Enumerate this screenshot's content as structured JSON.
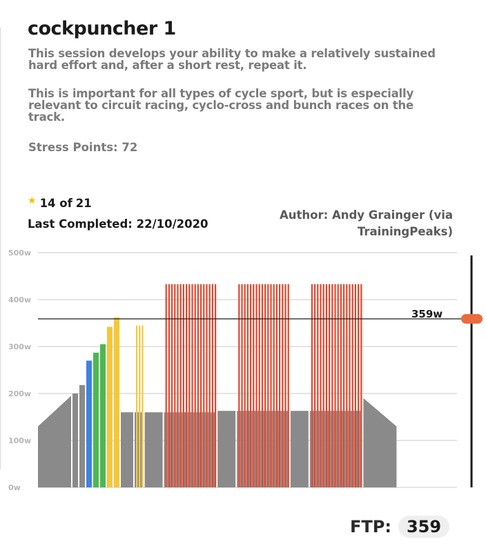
{
  "workout": {
    "title": "cockpuncher 1",
    "description_1": "This session develops your ability to make a relatively sustained hard effort and, after a short rest, repeat it.",
    "description_2": "This is important for all types of cycle sport, but is especially relevant to circuit racing, cyclo-cross and bunch races on the track.",
    "stress_points": "Stress Points: 72",
    "rating_current": "14 of",
    "rating_total": "21",
    "last_completed": "Last Completed: 22/10/2020",
    "author": "Author: Andy Grainger (via TrainingPeaks)"
  },
  "icons": {
    "star": "star-icon",
    "slider": "slider-handle"
  },
  "ftp": {
    "label": "FTP:",
    "value": "359"
  },
  "colors": {
    "gray": "#8a8a8a",
    "white": "#ffffff",
    "blue": "#3e82e0",
    "green": "#4cb850",
    "yellow": "#f4c83c",
    "red": "#e5452c",
    "accent": "#ec6a3f",
    "grid": "#c8c8c8"
  },
  "chart_data": {
    "type": "bar",
    "ylabel": "",
    "y_ticks": [
      "500w",
      "400w",
      "300w",
      "200w",
      "100w",
      "0w"
    ],
    "ylim": [
      0,
      500
    ],
    "ftp_line_label": "359w",
    "ftp_line_value": 359,
    "blocks": [
      {
        "kind": "ramp",
        "from": 130,
        "to": 195,
        "zone": "gray"
      },
      {
        "kind": "step",
        "values": [
          200,
          218
        ],
        "zone": "gray"
      },
      {
        "kind": "step",
        "values": [
          270
        ],
        "zone": "blue"
      },
      {
        "kind": "step",
        "values": [
          287,
          305
        ],
        "zone": "green"
      },
      {
        "kind": "step",
        "values": [
          342,
          362
        ],
        "zone": "yellow"
      },
      {
        "kind": "block",
        "value": 160,
        "zone": "gray"
      },
      {
        "kind": "intervals",
        "count": 3,
        "on": 345,
        "off": 160,
        "zone": "yellow"
      },
      {
        "kind": "block",
        "value": 160,
        "zone": "gray"
      },
      {
        "kind": "intervals",
        "count": 18,
        "on": 433,
        "off": 160,
        "zone": "red"
      },
      {
        "kind": "block",
        "value": 163,
        "zone": "gray"
      },
      {
        "kind": "intervals",
        "count": 18,
        "on": 433,
        "off": 163,
        "zone": "red"
      },
      {
        "kind": "block",
        "value": 163,
        "zone": "gray"
      },
      {
        "kind": "intervals",
        "count": 18,
        "on": 433,
        "off": 163,
        "zone": "red"
      },
      {
        "kind": "ramp",
        "from": 190,
        "to": 130,
        "zone": "gray"
      }
    ]
  }
}
